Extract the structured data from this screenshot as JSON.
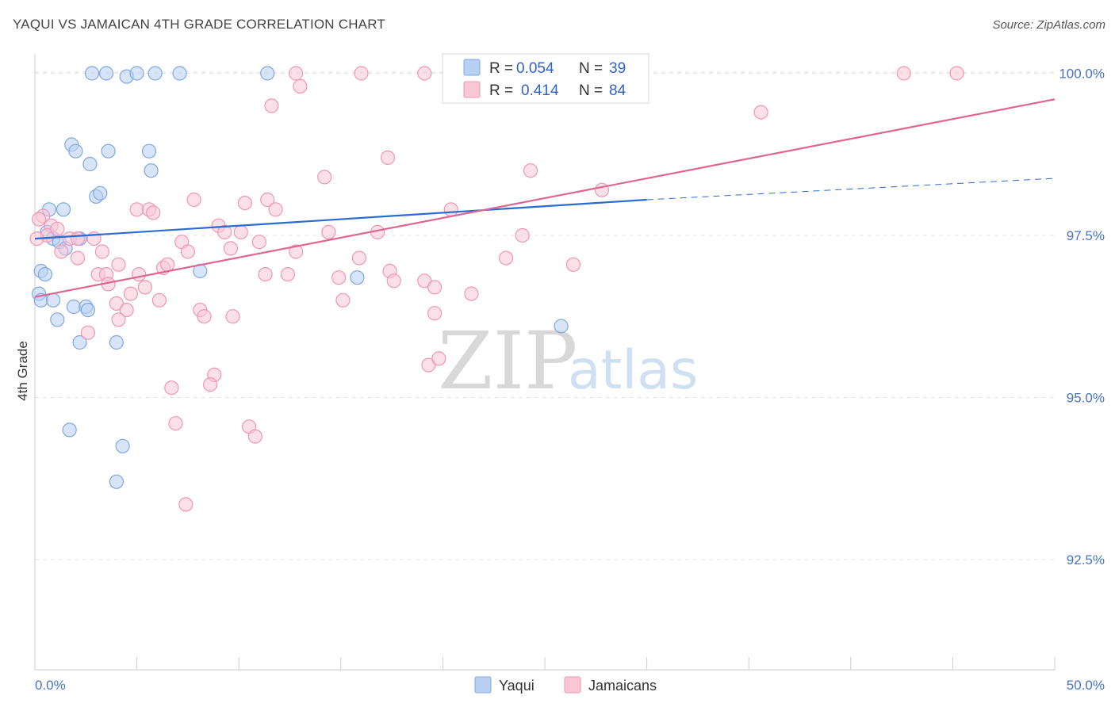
{
  "header": {
    "title": "YAQUI VS JAMAICAN 4TH GRADE CORRELATION CHART",
    "source": "Source: ZipAtlas.com"
  },
  "watermark": {
    "part1": "ZIP",
    "part2": "atlas"
  },
  "colors": {
    "yaqui_fill": "#b8d0f2",
    "yaqui_stroke": "#7fa8e0",
    "yaqui_line": "#2a6bd1",
    "jam_fill": "#f9c6d6",
    "jam_stroke": "#ee97b4",
    "jam_line": "#e0668f"
  },
  "chart_data": {
    "type": "scatter",
    "xlim": [
      0,
      50
    ],
    "ylim": [
      90.8,
      100.3
    ],
    "xlabel": "",
    "ylabel": "4th Grade",
    "x_ticks": [
      0,
      5,
      10,
      15,
      20,
      25,
      30,
      35,
      40,
      45,
      50
    ],
    "x_tick_labels": {
      "left": "0.0%",
      "right": "50.0%"
    },
    "y_ticks": [
      {
        "value": 100.0,
        "label": "100.0%"
      },
      {
        "value": 97.5,
        "label": "97.5%"
      },
      {
        "value": 95.0,
        "label": "95.0%"
      },
      {
        "value": 92.5,
        "label": "92.5%"
      }
    ],
    "grid": true,
    "legend_stats": [
      {
        "r_label": "R = ",
        "r_value": "0.054",
        "n_label": "N = ",
        "n_value": "39"
      },
      {
        "r_label": "R = ",
        "r_value": "0.414",
        "n_label": "N = ",
        "n_value": "84"
      }
    ],
    "series": [
      {
        "name": "Yaqui",
        "trend": {
          "x": [
            0,
            30
          ],
          "y": [
            97.45,
            98.05
          ],
          "dashed_to": [
            50,
            98.38
          ]
        },
        "points": [
          [
            2.8,
            100.0
          ],
          [
            3.5,
            100.0
          ],
          [
            4.5,
            99.95
          ],
          [
            5,
            100.0
          ],
          [
            5.9,
            100.0
          ],
          [
            7.1,
            100.0
          ],
          [
            11.4,
            100.0
          ],
          [
            1.8,
            98.9
          ],
          [
            2.0,
            98.8
          ],
          [
            3.6,
            98.8
          ],
          [
            2.7,
            98.6
          ],
          [
            5.6,
            98.8
          ],
          [
            5.7,
            98.5
          ],
          [
            3.0,
            98.1
          ],
          [
            3.2,
            98.15
          ],
          [
            0.7,
            97.9
          ],
          [
            1.4,
            97.9
          ],
          [
            0.6,
            97.55
          ],
          [
            0.9,
            97.45
          ],
          [
            1.2,
            97.4
          ],
          [
            1.5,
            97.3
          ],
          [
            2.2,
            97.45
          ],
          [
            0.3,
            96.95
          ],
          [
            0.5,
            96.9
          ],
          [
            0.2,
            96.6
          ],
          [
            0.3,
            96.5
          ],
          [
            0.9,
            96.5
          ],
          [
            8.1,
            96.95
          ],
          [
            15.8,
            96.85
          ],
          [
            1.9,
            96.4
          ],
          [
            2.5,
            96.4
          ],
          [
            2.6,
            96.35
          ],
          [
            1.1,
            96.2
          ],
          [
            2.2,
            95.85
          ],
          [
            4.0,
            95.85
          ],
          [
            25.8,
            96.1
          ],
          [
            1.7,
            94.5
          ],
          [
            4.3,
            94.25
          ],
          [
            4.0,
            93.7
          ]
        ]
      },
      {
        "name": "Jamaicans",
        "trend": {
          "x": [
            0,
            50
          ],
          "y": [
            96.55,
            99.6
          ]
        },
        "points": [
          [
            12.8,
            100.0
          ],
          [
            16.0,
            100.0
          ],
          [
            19.1,
            100.0
          ],
          [
            23.6,
            100.0
          ],
          [
            27.2,
            100.0
          ],
          [
            42.6,
            100.0
          ],
          [
            45.2,
            100.0
          ],
          [
            13.0,
            99.8
          ],
          [
            11.6,
            99.5
          ],
          [
            35.6,
            99.4
          ],
          [
            17.3,
            98.7
          ],
          [
            24.3,
            98.5
          ],
          [
            14.2,
            98.4
          ],
          [
            27.8,
            98.2
          ],
          [
            7.8,
            98.05
          ],
          [
            10.3,
            98.0
          ],
          [
            11.4,
            98.05
          ],
          [
            5.0,
            97.9
          ],
          [
            5.6,
            97.9
          ],
          [
            5.8,
            97.85
          ],
          [
            11.8,
            97.9
          ],
          [
            20.4,
            97.9
          ],
          [
            0.4,
            97.8
          ],
          [
            0.8,
            97.65
          ],
          [
            0.6,
            97.5
          ],
          [
            1.1,
            97.6
          ],
          [
            9.0,
            97.65
          ],
          [
            9.3,
            97.55
          ],
          [
            10.1,
            97.55
          ],
          [
            14.4,
            97.55
          ],
          [
            16.8,
            97.55
          ],
          [
            23.9,
            97.5
          ],
          [
            1.7,
            97.45
          ],
          [
            2.1,
            97.45
          ],
          [
            2.9,
            97.45
          ],
          [
            7.2,
            97.4
          ],
          [
            11.0,
            97.4
          ],
          [
            9.6,
            97.3
          ],
          [
            12.8,
            97.25
          ],
          [
            1.3,
            97.25
          ],
          [
            3.3,
            97.25
          ],
          [
            7.5,
            97.25
          ],
          [
            2.1,
            97.15
          ],
          [
            15.9,
            97.15
          ],
          [
            23.1,
            97.15
          ],
          [
            4.1,
            97.05
          ],
          [
            6.3,
            97.0
          ],
          [
            6.5,
            97.05
          ],
          [
            17.4,
            96.95
          ],
          [
            26.4,
            97.05
          ],
          [
            3.1,
            96.9
          ],
          [
            3.5,
            96.9
          ],
          [
            5.1,
            96.9
          ],
          [
            11.3,
            96.9
          ],
          [
            12.4,
            96.9
          ],
          [
            14.9,
            96.85
          ],
          [
            17.6,
            96.8
          ],
          [
            19.1,
            96.8
          ],
          [
            3.6,
            96.75
          ],
          [
            5.4,
            96.7
          ],
          [
            4.7,
            96.6
          ],
          [
            19.6,
            96.7
          ],
          [
            21.4,
            96.6
          ],
          [
            4.0,
            96.45
          ],
          [
            6.1,
            96.5
          ],
          [
            15.1,
            96.5
          ],
          [
            4.5,
            96.35
          ],
          [
            8.1,
            96.35
          ],
          [
            8.3,
            96.25
          ],
          [
            9.7,
            96.25
          ],
          [
            4.1,
            96.2
          ],
          [
            19.6,
            96.3
          ],
          [
            2.6,
            96.0
          ],
          [
            19.3,
            95.5
          ],
          [
            19.8,
            95.6
          ],
          [
            8.8,
            95.35
          ],
          [
            8.6,
            95.2
          ],
          [
            6.7,
            95.15
          ],
          [
            6.9,
            94.6
          ],
          [
            10.5,
            94.55
          ],
          [
            10.8,
            94.4
          ],
          [
            7.4,
            93.35
          ],
          [
            0.1,
            97.45
          ],
          [
            0.2,
            97.75
          ]
        ]
      }
    ]
  }
}
